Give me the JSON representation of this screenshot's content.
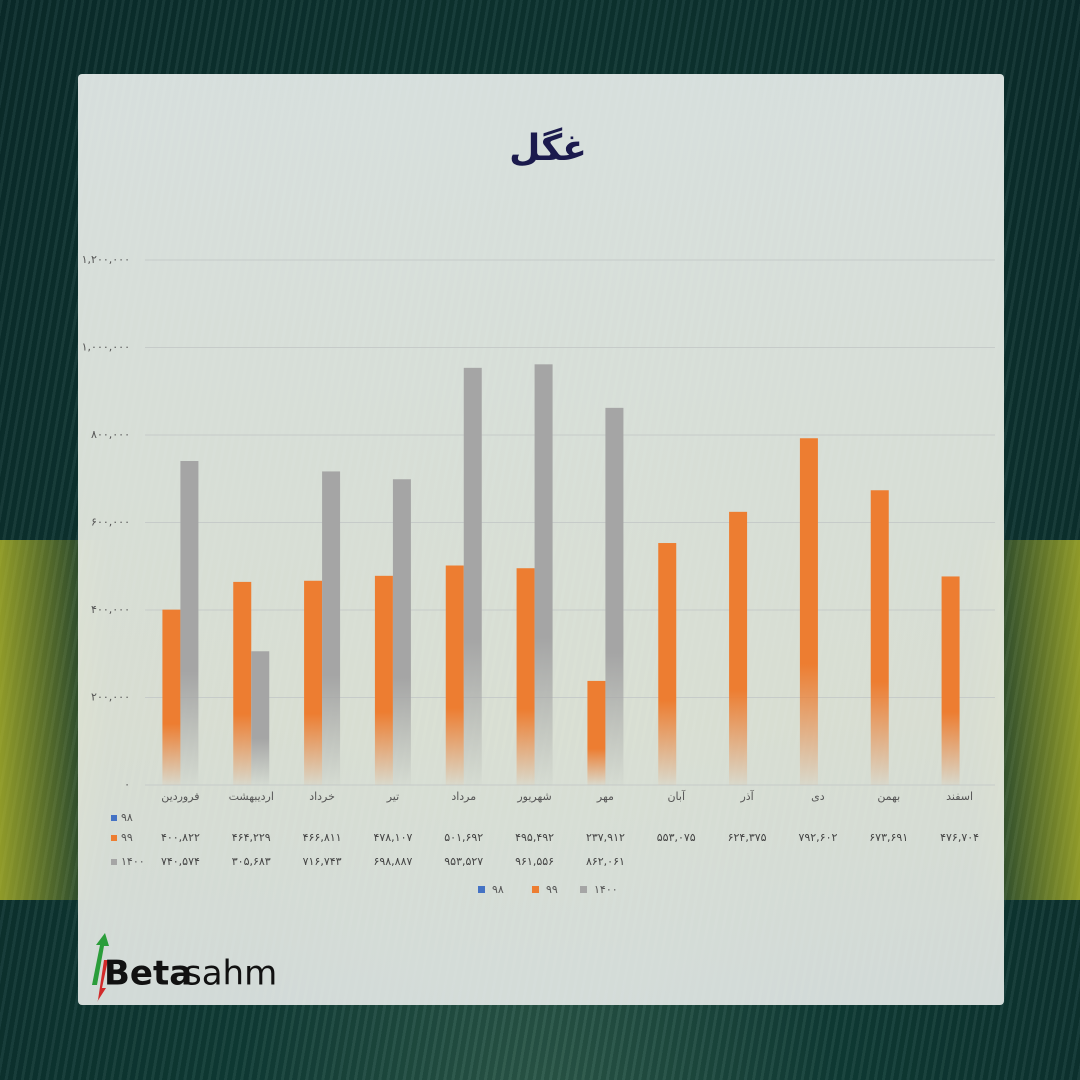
{
  "chart_data": {
    "type": "bar",
    "title": "غگل",
    "categories": [
      "فروردین",
      "اردیبهشت",
      "خرداد",
      "تیر",
      "مرداد",
      "شهریور",
      "مهر",
      "آبان",
      "آذر",
      "دی",
      "بهمن",
      "اسفند"
    ],
    "series": [
      {
        "name": "۹۸",
        "color": "#4472c4",
        "values": [
          null,
          null,
          null,
          null,
          null,
          null,
          null,
          null,
          null,
          null,
          null,
          null
        ]
      },
      {
        "name": "۹۹",
        "color": "#ed7d31",
        "values": [
          400822,
          464229,
          466811,
          478107,
          501692,
          495492,
          237912,
          553075,
          624375,
          792602,
          673691,
          476704
        ],
        "value_labels": [
          "۴۰۰,۸۲۲",
          "۴۶۴,۲۲۹",
          "۴۶۶,۸۱۱",
          "۴۷۸,۱۰۷",
          "۵۰۱,۶۹۲",
          "۴۹۵,۴۹۲",
          "۲۳۷,۹۱۲",
          "۵۵۳,۰۷۵",
          "۶۲۴,۳۷۵",
          "۷۹۲,۶۰۲",
          "۶۷۳,۶۹۱",
          "۴۷۶,۷۰۴"
        ]
      },
      {
        "name": "۱۴۰۰",
        "color": "#a5a5a5",
        "values": [
          740574,
          305683,
          716743,
          698887,
          953527,
          961556,
          862061,
          null,
          null,
          null,
          null,
          null
        ],
        "value_labels": [
          "۷۴۰,۵۷۴",
          "۳۰۵,۶۸۳",
          "۷۱۶,۷۴۳",
          "۶۹۸,۸۸۷",
          "۹۵۳,۵۲۷",
          "۹۶۱,۵۵۶",
          "۸۶۲,۰۶۱",
          null,
          null,
          null,
          null,
          null
        ]
      }
    ],
    "ylim": [
      0,
      1200000
    ],
    "yticks": [
      {
        "value": 0,
        "label": "۰"
      },
      {
        "value": 200000,
        "label": "۲۰۰,۰۰۰"
      },
      {
        "value": 400000,
        "label": "۴۰۰,۰۰۰"
      },
      {
        "value": 600000,
        "label": "۶۰۰,۰۰۰"
      },
      {
        "value": 800000,
        "label": "۸۰۰,۰۰۰"
      },
      {
        "value": 1000000,
        "label": "۱,۰۰۰,۰۰۰"
      },
      {
        "value": 1200000,
        "label": "۱,۲۰۰,۰۰۰"
      }
    ],
    "grid": true
  },
  "brand": {
    "bold": "Beta",
    "light": "sahm"
  }
}
